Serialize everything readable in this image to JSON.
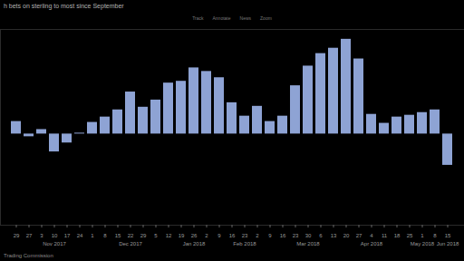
{
  "chart_data": {
    "type": "bar",
    "title": "h bets on sterling to most since September",
    "caption": "Trading Commission",
    "annotations": [
      "Track",
      "Annotate",
      "News",
      "Zoom"
    ],
    "categories": [
      "29",
      "27",
      "3",
      "10",
      "17",
      "24",
      "1",
      "8",
      "15",
      "22",
      "29",
      "5",
      "12",
      "19",
      "26",
      "2",
      "9",
      "16",
      "23",
      "2",
      "9",
      "16",
      "23",
      "30",
      "6",
      "13",
      "20",
      "27",
      "4",
      "11",
      "18",
      "25",
      "1",
      "8",
      "15"
    ],
    "x_group_labels": [
      null,
      null,
      null,
      "Nov 2017",
      null,
      null,
      null,
      null,
      null,
      "Dec 2017",
      null,
      null,
      null,
      null,
      "Jan 2018",
      null,
      null,
      null,
      "Feb 2018",
      null,
      null,
      null,
      null,
      "Mar 2018",
      null,
      null,
      null,
      null,
      "Apr 2018",
      null,
      null,
      null,
      "May 2018",
      null,
      "Jun 2018"
    ],
    "values": [
      14,
      -3,
      5,
      -20,
      -10,
      1,
      13,
      19,
      27,
      47,
      30,
      38,
      57,
      59,
      74,
      70,
      63,
      35,
      20,
      31,
      14,
      20,
      54,
      76,
      90,
      96,
      106,
      84,
      22,
      12,
      19,
      21,
      24,
      27,
      -35
    ],
    "color": "#8ea3d4",
    "ylim": [
      -102,
      117
    ],
    "grid": false,
    "tick_labels": "x"
  }
}
